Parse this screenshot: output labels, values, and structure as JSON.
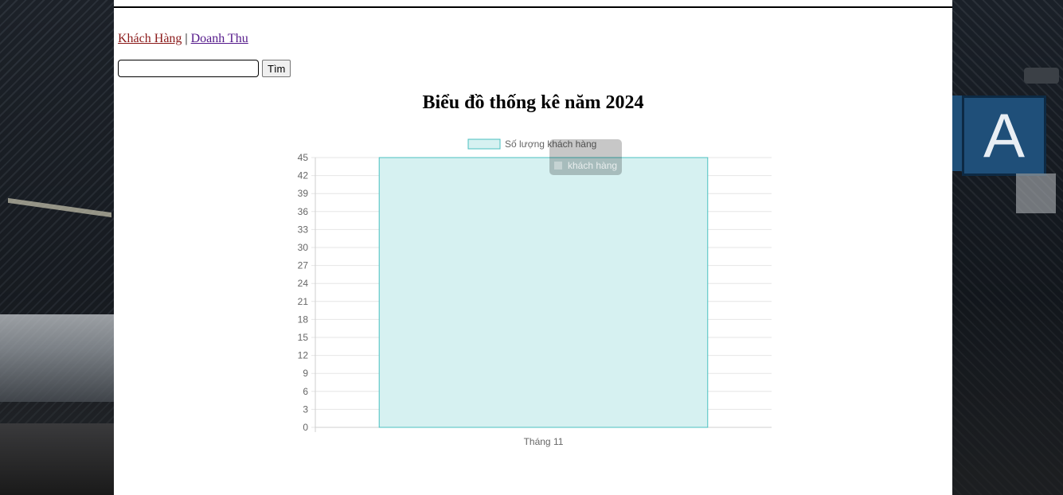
{
  "nav": {
    "customers_label": "Khách Hàng",
    "separator": "|",
    "revenue_label": "Doanh Thu"
  },
  "search": {
    "value": "",
    "placeholder": "",
    "button_label": "Tìm"
  },
  "chart_title": "Biểu đồ thống kê năm 2024",
  "tooltip": {
    "label": "khách hàng"
  },
  "colors": {
    "bar_fill": "#d6f1f1",
    "bar_border": "#4bc0c0",
    "grid": "#e6e6e6",
    "tick_text": "#666666",
    "link_customers": "#8b1a1a",
    "link_revenue": "#551a8b"
  },
  "chart_data": {
    "type": "bar",
    "categories": [
      "Tháng 11"
    ],
    "series": [
      {
        "name": "Số lượng khách hàng",
        "values": [
          45
        ]
      }
    ],
    "ylim": [
      0,
      45
    ],
    "yticks": [
      0,
      3,
      6,
      9,
      12,
      15,
      18,
      21,
      24,
      27,
      30,
      33,
      36,
      39,
      42,
      45
    ],
    "grid": true,
    "legend": "top-center",
    "title": "",
    "xlabel": "",
    "ylabel": ""
  }
}
